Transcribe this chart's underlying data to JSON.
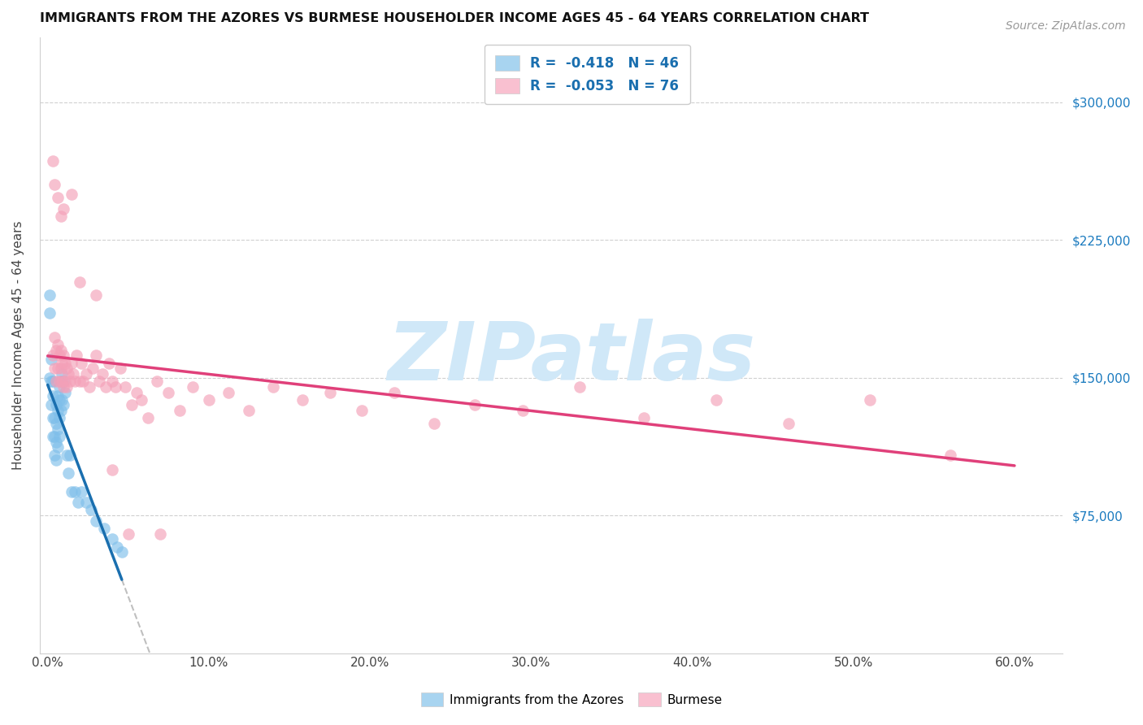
{
  "title": "IMMIGRANTS FROM THE AZORES VS BURMESE HOUSEHOLDER INCOME AGES 45 - 64 YEARS CORRELATION CHART",
  "source": "Source: ZipAtlas.com",
  "ylabel": "Householder Income Ages 45 - 64 years",
  "ylim": [
    0,
    335000
  ],
  "xlim": [
    -0.005,
    0.63
  ],
  "legend_label1": "Immigrants from the Azores",
  "legend_label2": "Burmese",
  "R1": "-0.418",
  "N1": "46",
  "R2": "-0.053",
  "N2": "76",
  "color_blue": "#7fbfea",
  "color_pink": "#f4a0b8",
  "color_blue_line": "#1a6faf",
  "color_pink_line": "#e0407a",
  "color_blue_legend": "#a8d4f0",
  "color_pink_legend": "#f9c0d0",
  "ytick_vals": [
    75000,
    150000,
    225000,
    300000
  ],
  "ytick_labels": [
    "$75,000",
    "$150,000",
    "$225,000",
    "$300,000"
  ],
  "xtick_vals": [
    0.0,
    0.1,
    0.2,
    0.3,
    0.4,
    0.5,
    0.6
  ],
  "xtick_labels": [
    "0.0%",
    "10.0%",
    "20.0%",
    "30.0%",
    "40.0%",
    "50.0%",
    "60.0%"
  ],
  "azores_x": [
    0.001,
    0.001,
    0.001,
    0.002,
    0.002,
    0.002,
    0.003,
    0.003,
    0.003,
    0.003,
    0.004,
    0.004,
    0.004,
    0.005,
    0.005,
    0.005,
    0.005,
    0.006,
    0.006,
    0.006,
    0.006,
    0.007,
    0.007,
    0.007,
    0.007,
    0.008,
    0.008,
    0.009,
    0.009,
    0.01,
    0.01,
    0.011,
    0.012,
    0.013,
    0.014,
    0.015,
    0.017,
    0.019,
    0.021,
    0.024,
    0.027,
    0.03,
    0.035,
    0.04,
    0.043,
    0.046
  ],
  "azores_y": [
    195000,
    185000,
    150000,
    160000,
    148000,
    135000,
    148000,
    140000,
    128000,
    118000,
    128000,
    118000,
    108000,
    135000,
    125000,
    115000,
    105000,
    140000,
    132000,
    122000,
    112000,
    145000,
    138000,
    128000,
    118000,
    148000,
    132000,
    152000,
    138000,
    148000,
    135000,
    142000,
    108000,
    98000,
    108000,
    88000,
    88000,
    82000,
    88000,
    82000,
    78000,
    72000,
    68000,
    62000,
    58000,
    55000
  ],
  "burmese_x": [
    0.003,
    0.004,
    0.004,
    0.005,
    0.005,
    0.006,
    0.006,
    0.007,
    0.007,
    0.008,
    0.008,
    0.009,
    0.009,
    0.01,
    0.01,
    0.011,
    0.011,
    0.012,
    0.012,
    0.013,
    0.014,
    0.015,
    0.016,
    0.017,
    0.018,
    0.02,
    0.021,
    0.022,
    0.024,
    0.026,
    0.028,
    0.03,
    0.032,
    0.034,
    0.036,
    0.038,
    0.04,
    0.042,
    0.045,
    0.048,
    0.052,
    0.055,
    0.058,
    0.062,
    0.068,
    0.075,
    0.082,
    0.09,
    0.1,
    0.112,
    0.125,
    0.14,
    0.158,
    0.175,
    0.195,
    0.215,
    0.24,
    0.265,
    0.295,
    0.33,
    0.37,
    0.415,
    0.46,
    0.51,
    0.56,
    0.003,
    0.004,
    0.006,
    0.008,
    0.01,
    0.015,
    0.02,
    0.03,
    0.04,
    0.05,
    0.07
  ],
  "burmese_y": [
    162000,
    155000,
    172000,
    165000,
    148000,
    168000,
    155000,
    162000,
    148000,
    165000,
    155000,
    158000,
    148000,
    162000,
    145000,
    158000,
    148000,
    155000,
    145000,
    152000,
    148000,
    158000,
    152000,
    148000,
    162000,
    148000,
    158000,
    148000,
    152000,
    145000,
    155000,
    162000,
    148000,
    152000,
    145000,
    158000,
    148000,
    145000,
    155000,
    145000,
    135000,
    142000,
    138000,
    128000,
    148000,
    142000,
    132000,
    145000,
    138000,
    142000,
    132000,
    145000,
    138000,
    142000,
    132000,
    142000,
    125000,
    135000,
    132000,
    145000,
    128000,
    138000,
    125000,
    138000,
    108000,
    268000,
    255000,
    248000,
    238000,
    242000,
    250000,
    202000,
    195000,
    100000,
    65000,
    65000
  ],
  "watermark": "ZIPatlas",
  "watermark_color": "#d0e8f8",
  "watermark_fontsize": 72
}
